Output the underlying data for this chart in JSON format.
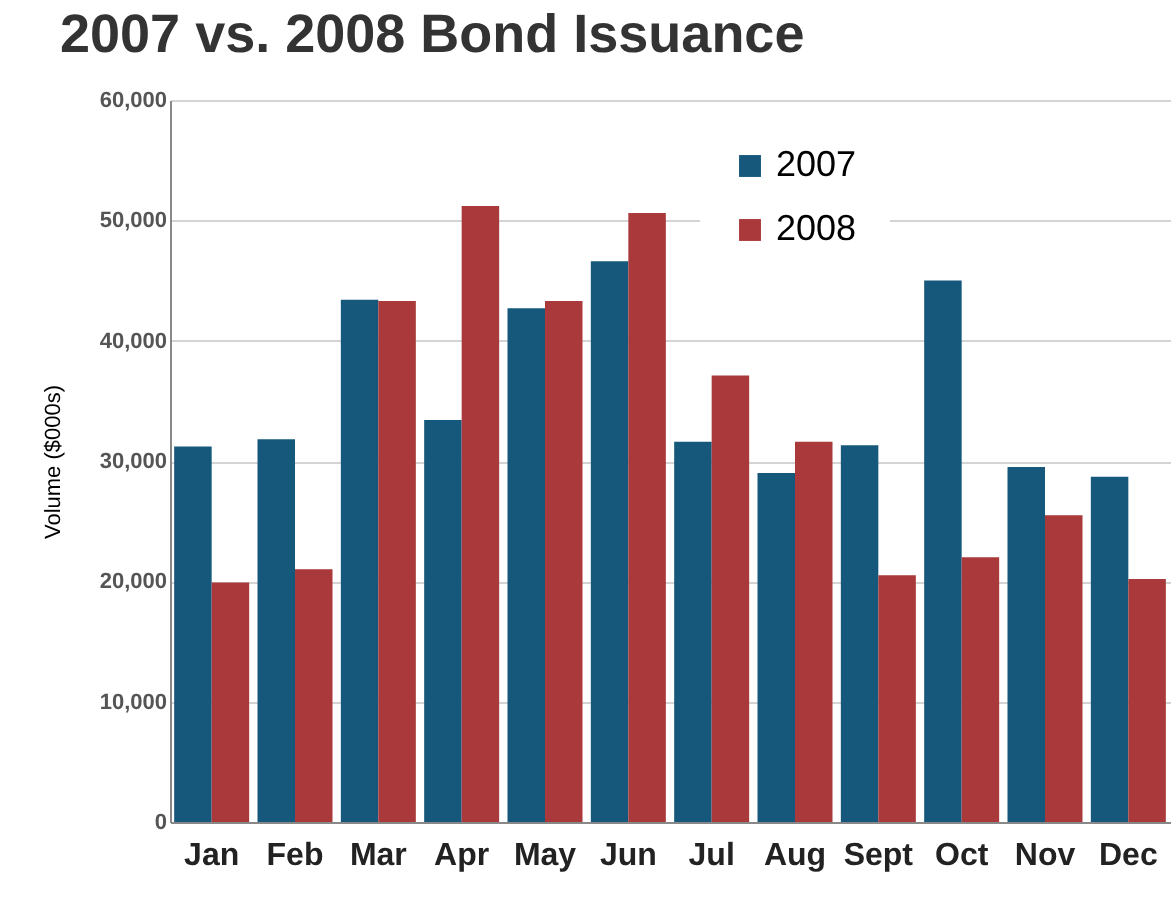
{
  "chart_data": {
    "type": "bar",
    "title": "2007 vs. 2008 Bond Issuance",
    "ylabel": "Volume ($000s)",
    "categories": [
      "Jan",
      "Feb",
      "Mar",
      "Apr",
      "May",
      "Jun",
      "Jul",
      "Aug",
      "Sept",
      "Oct",
      "Nov",
      "Dec"
    ],
    "series": [
      {
        "name": "2007",
        "color": "#15587c",
        "values": [
          31200,
          31800,
          43400,
          33400,
          42700,
          46600,
          31600,
          29000,
          31300,
          45000,
          29500,
          28700
        ]
      },
      {
        "name": "2008",
        "color": "#a9393a",
        "values": [
          19900,
          21000,
          43300,
          51200,
          43300,
          50600,
          37100,
          31600,
          20500,
          22000,
          25500,
          20200
        ]
      }
    ],
    "ylim": [
      0,
      60000
    ],
    "yticks": [
      {
        "value": 0,
        "label": "0"
      },
      {
        "value": 10000,
        "label": "10,000"
      },
      {
        "value": 20000,
        "label": "20,000"
      },
      {
        "value": 30000,
        "label": "30,000"
      },
      {
        "value": 40000,
        "label": "40,000"
      },
      {
        "value": 50000,
        "label": "50,000"
      },
      {
        "value": 60000,
        "label": "60,000"
      }
    ],
    "grid": true,
    "legend": "top"
  }
}
